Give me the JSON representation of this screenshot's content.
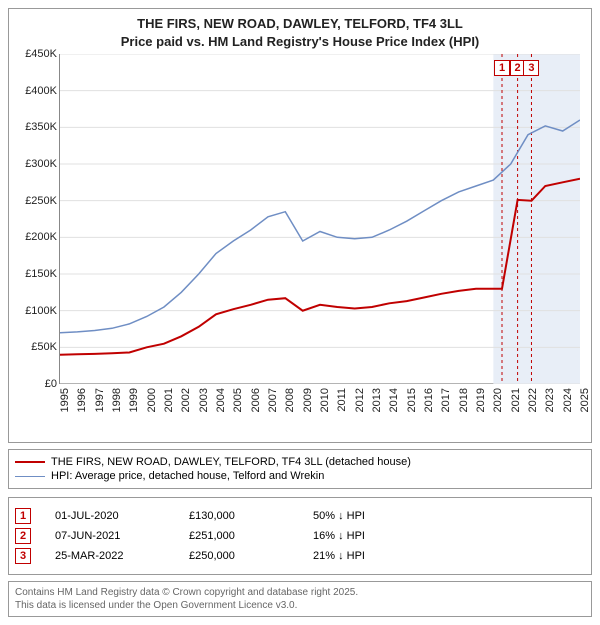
{
  "title_line1": "THE FIRS, NEW ROAD, DAWLEY, TELFORD, TF4 3LL",
  "title_line2": "Price paid vs. HM Land Registry's House Price Index (HPI)",
  "chart": {
    "type": "line",
    "background_color": "#ffffff",
    "grid_color": "#e0e0e0",
    "axis_color": "#888888",
    "ylim": [
      0,
      450000
    ],
    "ytick_step": 50000,
    "ytick_labels": [
      "£0",
      "£50K",
      "£100K",
      "£150K",
      "£200K",
      "£250K",
      "£300K",
      "£350K",
      "£400K",
      "£450K"
    ],
    "xlim": [
      1995,
      2025
    ],
    "xtick_step": 1,
    "xtick_labels": [
      "1995",
      "1996",
      "1997",
      "1998",
      "1999",
      "2000",
      "2001",
      "2002",
      "2003",
      "2004",
      "2005",
      "2006",
      "2007",
      "2008",
      "2009",
      "2010",
      "2011",
      "2012",
      "2013",
      "2014",
      "2015",
      "2016",
      "2017",
      "2018",
      "2019",
      "2020",
      "2021",
      "2022",
      "2023",
      "2024",
      "2025"
    ],
    "marker_band": {
      "start_year": 2020,
      "end_year": 2025,
      "fill": "#e8eef7",
      "dash_color": "#c00000"
    },
    "series": [
      {
        "name": "price_paid",
        "label": "THE FIRS, NEW ROAD, DAWLEY, TELFORD, TF4 3LL (detached house)",
        "color": "#c00000",
        "line_width": 2,
        "points": [
          [
            1995,
            40000
          ],
          [
            1996,
            40500
          ],
          [
            1997,
            41000
          ],
          [
            1998,
            42000
          ],
          [
            1999,
            43000
          ],
          [
            2000,
            50000
          ],
          [
            2001,
            55000
          ],
          [
            2002,
            65000
          ],
          [
            2003,
            78000
          ],
          [
            2004,
            95000
          ],
          [
            2005,
            102000
          ],
          [
            2006,
            108000
          ],
          [
            2007,
            115000
          ],
          [
            2008,
            117000
          ],
          [
            2009,
            100000
          ],
          [
            2010,
            108000
          ],
          [
            2011,
            105000
          ],
          [
            2012,
            103000
          ],
          [
            2013,
            105000
          ],
          [
            2014,
            110000
          ],
          [
            2015,
            113000
          ],
          [
            2016,
            118000
          ],
          [
            2017,
            123000
          ],
          [
            2018,
            127000
          ],
          [
            2019,
            130000
          ],
          [
            2020,
            130000
          ],
          [
            2020.5,
            130000
          ],
          [
            2021.4,
            251000
          ],
          [
            2022.2,
            250000
          ],
          [
            2023,
            270000
          ],
          [
            2024,
            275000
          ],
          [
            2025,
            280000
          ]
        ]
      },
      {
        "name": "hpi",
        "label": "HPI: Average price, detached house, Telford and Wrekin",
        "color": "#6f8ec4",
        "line_width": 1.5,
        "points": [
          [
            1995,
            70000
          ],
          [
            1996,
            71000
          ],
          [
            1997,
            73000
          ],
          [
            1998,
            76000
          ],
          [
            1999,
            82000
          ],
          [
            2000,
            92000
          ],
          [
            2001,
            105000
          ],
          [
            2002,
            125000
          ],
          [
            2003,
            150000
          ],
          [
            2004,
            178000
          ],
          [
            2005,
            195000
          ],
          [
            2006,
            210000
          ],
          [
            2007,
            228000
          ],
          [
            2008,
            235000
          ],
          [
            2009,
            195000
          ],
          [
            2010,
            208000
          ],
          [
            2011,
            200000
          ],
          [
            2012,
            198000
          ],
          [
            2013,
            200000
          ],
          [
            2014,
            210000
          ],
          [
            2015,
            222000
          ],
          [
            2016,
            236000
          ],
          [
            2017,
            250000
          ],
          [
            2018,
            262000
          ],
          [
            2019,
            270000
          ],
          [
            2020,
            278000
          ],
          [
            2021,
            300000
          ],
          [
            2022,
            340000
          ],
          [
            2023,
            352000
          ],
          [
            2024,
            345000
          ],
          [
            2025,
            360000
          ]
        ]
      }
    ],
    "marker_labels": [
      "1",
      "2",
      "3"
    ],
    "marker_x": [
      2020.5,
      2021.4,
      2022.2
    ]
  },
  "legend": {
    "rows": [
      {
        "color": "#c00000",
        "width": 2,
        "label": "THE FIRS, NEW ROAD, DAWLEY, TELFORD, TF4 3LL (detached house)"
      },
      {
        "color": "#6f8ec4",
        "width": 1.5,
        "label": "HPI: Average price, detached house, Telford and Wrekin"
      }
    ]
  },
  "transactions": [
    {
      "num": "1",
      "date": "01-JUL-2020",
      "price": "£130,000",
      "hpi": "50% ↓ HPI"
    },
    {
      "num": "2",
      "date": "07-JUN-2021",
      "price": "£251,000",
      "hpi": "16% ↓ HPI"
    },
    {
      "num": "3",
      "date": "25-MAR-2022",
      "price": "£250,000",
      "hpi": "21% ↓ HPI"
    }
  ],
  "footer_line1": "Contains HM Land Registry data © Crown copyright and database right 2025.",
  "footer_line2": "This data is licensed under the Open Government Licence v3.0."
}
